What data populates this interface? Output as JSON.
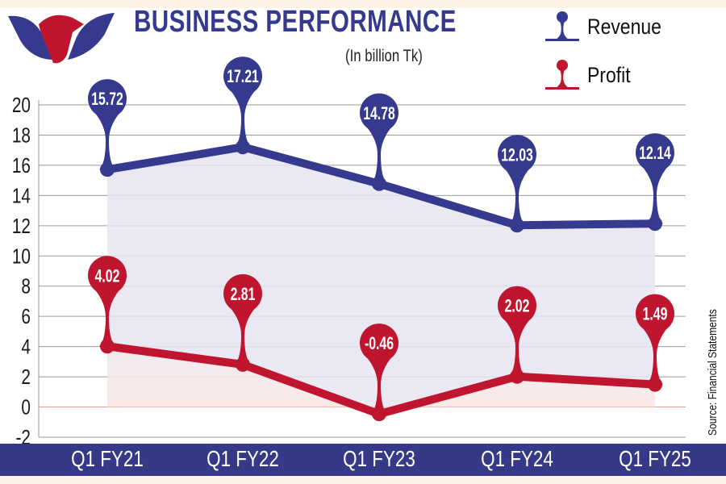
{
  "header": {
    "title": "BUSINESS PERFORMANCE",
    "subtitle": "(In billion Tk)"
  },
  "legend": [
    {
      "label": "Revenue",
      "color": "#353a8f"
    },
    {
      "label": "Profit",
      "color": "#c0152f"
    }
  ],
  "source": "Source: Financial Statements",
  "colors": {
    "revenue": "#353a8f",
    "profit": "#c0152f",
    "revenue_fill": "#e6e4f1",
    "profit_fill": "#fbe9e5",
    "axis_band": "#363987",
    "background": "#fdf2e6",
    "grid": "#9a9a9a",
    "zero_line": "#e89a9a"
  },
  "chart_data": {
    "type": "line",
    "title": "BUSINESS PERFORMANCE",
    "subtitle": "(In billion Tk)",
    "xlabel": "",
    "ylabel": "",
    "categories": [
      "Q1 FY21",
      "Q1 FY22",
      "Q1 FY23",
      "Q1 FY24",
      "Q1 FY25"
    ],
    "series": [
      {
        "name": "Revenue",
        "values": [
          15.72,
          17.21,
          14.78,
          12.03,
          12.14
        ],
        "labels": [
          "15.72",
          "17.21",
          "14.78",
          "12.03",
          "12.14"
        ]
      },
      {
        "name": "Profit",
        "values": [
          4.02,
          2.81,
          -0.46,
          2.02,
          1.49
        ],
        "labels": [
          "4.02",
          "2.81",
          "-0.46",
          "2.02",
          "1.49"
        ]
      }
    ],
    "ylim": [
      -2,
      20
    ],
    "yticks": [
      "20",
      "18",
      "16",
      "14",
      "12",
      "10",
      "8",
      "6",
      "4",
      "2",
      "0",
      "-2"
    ],
    "grid": true,
    "legend_position": "top-right",
    "annotation": "Source: Financial Statements"
  }
}
